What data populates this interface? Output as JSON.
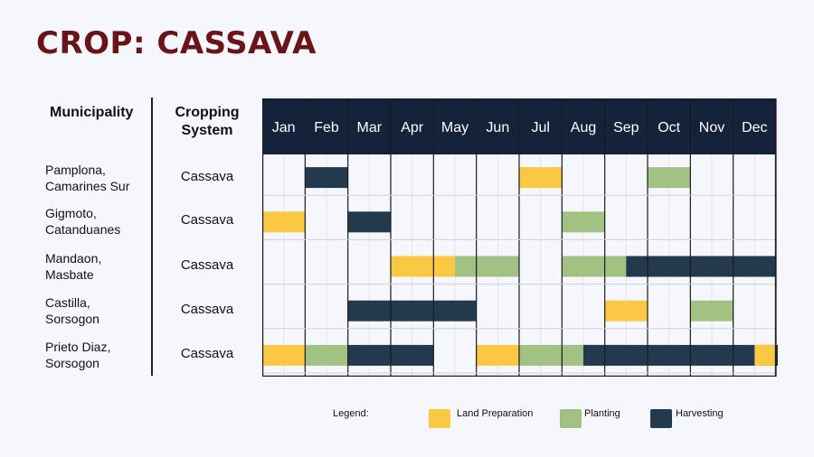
{
  "title": "CROP: CASSAVA",
  "headers": {
    "municipality": "Municipality",
    "cropping_line1": "Cropping",
    "cropping_line2": "System"
  },
  "rows": [
    {
      "line1": "Pamplona,",
      "line2": "Camarines Sur",
      "crop": "Cassava"
    },
    {
      "line1": "Gigmoto,",
      "line2": "Catanduanes",
      "crop": "Cassava"
    },
    {
      "line1": "Mandaon,",
      "line2": "Masbate",
      "crop": "Cassava"
    },
    {
      "line1": "Castilla,",
      "line2": "Sorsogon",
      "crop": "Cassava"
    },
    {
      "line1": "Prieto Diaz,",
      "line2": "Sorsogon",
      "crop": "Cassava"
    }
  ],
  "legend": {
    "label": "Legend:",
    "land": "Land Preparation",
    "planting": "Planting",
    "harvesting": "Harvesting"
  },
  "colors": {
    "header_bg": "#14233b",
    "land": "#fbc843",
    "planting": "#a1c283",
    "harvesting": "#233a4e",
    "title": "#6b1418"
  },
  "chart_data": {
    "type": "table",
    "months": [
      "Jan",
      "Feb",
      "Mar",
      "Apr",
      "May",
      "Jun",
      "Jul",
      "Aug",
      "Sep",
      "Oct",
      "Nov",
      "Dec"
    ],
    "schedule": [
      {
        "municipality": "Pamplona, Camarines Sur",
        "activities": [
          {
            "type": "harvesting",
            "start": 2,
            "end": 2
          },
          {
            "type": "land",
            "start": 7,
            "end": 7
          },
          {
            "type": "planting",
            "start": 10,
            "end": 10
          }
        ]
      },
      {
        "municipality": "Gigmoto, Catanduanes",
        "activities": [
          {
            "type": "land",
            "start": 1,
            "end": 1
          },
          {
            "type": "harvesting",
            "start": 3,
            "end": 3
          },
          {
            "type": "planting",
            "start": 8,
            "end": 8
          }
        ]
      },
      {
        "municipality": "Mandaon, Masbate",
        "activities": [
          {
            "type": "land",
            "start": 4,
            "end": 5.5
          },
          {
            "type": "planting",
            "start": 5.5,
            "end": 6
          },
          {
            "type": "planting",
            "start": 8,
            "end": 9.5
          },
          {
            "type": "harvesting",
            "start": 9.5,
            "end": 12
          }
        ]
      },
      {
        "municipality": "Castilla, Sorsogon",
        "activities": [
          {
            "type": "harvesting",
            "start": 3,
            "end": 5
          },
          {
            "type": "land",
            "start": 9,
            "end": 9
          },
          {
            "type": "planting",
            "start": 11,
            "end": 11
          }
        ]
      },
      {
        "municipality": "Prieto Diaz, Sorsogon",
        "activities": [
          {
            "type": "land",
            "start": 1,
            "end": 1
          },
          {
            "type": "planting",
            "start": 2,
            "end": 2
          },
          {
            "type": "harvesting",
            "start": 3,
            "end": 4
          },
          {
            "type": "land",
            "start": 6,
            "end": 6
          },
          {
            "type": "planting",
            "start": 7,
            "end": 8.5
          },
          {
            "type": "harvesting",
            "start": 8.5,
            "end": 12.5
          },
          {
            "type": "land",
            "start": 12.5,
            "end": 12
          }
        ]
      }
    ]
  }
}
